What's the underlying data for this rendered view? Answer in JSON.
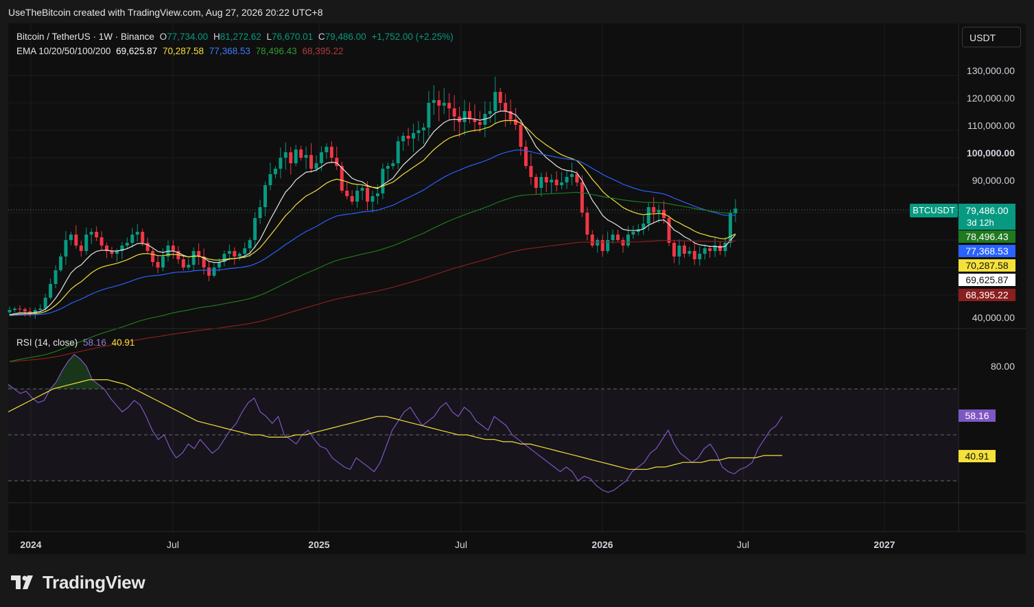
{
  "header": {
    "attribution": "UseTheBitcoin created with TradingView.com, Aug 27, 2026 20:22 UTC+8"
  },
  "legend": {
    "symbol": "Bitcoin / TetherUS · 1W · Binance",
    "open_label": "O",
    "open": "77,734.00",
    "high_label": "H",
    "high": "81,272.62",
    "low_label": "L",
    "low": "76,670.01",
    "close_label": "C",
    "close": "79,486.00",
    "change": "+1,752.00 (+2.25%)",
    "ema_title": "EMA 10/20/50/100/200",
    "ema_values": [
      "69,625.87",
      "70,287.58",
      "77,368.53",
      "78,496.43",
      "68,395.22"
    ],
    "rsi_title": "RSI (14, close)",
    "rsi_value": "58.16",
    "rsi_ma_value": "40.91"
  },
  "toolbar": {
    "currency_button": "USDT"
  },
  "price_axis": [
    "130,000.00",
    "120,000.00",
    "110,000.00",
    "100,000.00",
    "90,000.00",
    "40,000.00"
  ],
  "rsi_axis": [
    "80.00"
  ],
  "time_axis": [
    {
      "label": "2024",
      "year": true
    },
    {
      "label": "Jul",
      "year": false
    },
    {
      "label": "2025",
      "year": true
    },
    {
      "label": "Jul",
      "year": false
    },
    {
      "label": "2026",
      "year": true
    },
    {
      "label": "Jul",
      "year": false
    },
    {
      "label": "2027",
      "year": true
    }
  ],
  "tags": {
    "symbol_tag": "BTCUSDT",
    "last_price": "79,486.00",
    "countdown": "3d 12h",
    "ema100": "78,496.43",
    "ema50": "77,368.53",
    "ema20": "70,287.58",
    "ema10": "69,625.87",
    "ema200": "68,395.22",
    "rsi": "58.16",
    "rsi_ma": "40.91"
  },
  "brand": {
    "name": "TradingView"
  },
  "colors": {
    "up": "#089981",
    "down": "#f23645",
    "ema10": "#e6e6e6",
    "ema20": "#f4e13a",
    "ema50": "#2962ff",
    "ema100": "#1f7a1f",
    "ema200": "#8b1e1e",
    "rsi": "#7e57c2",
    "rsi_ma": "#f4e13a"
  },
  "chart_data": {
    "type": "candlestick",
    "timeframe": "1W",
    "y_range": [
      40000,
      130000
    ],
    "rsi_range": [
      20,
      80
    ],
    "rsi_bands": [
      30,
      50,
      70
    ],
    "series": [
      {
        "name": "BTC/USDT close (approx.)",
        "values": [
          42500,
          43000,
          42800,
          42000,
          41000,
          42500,
          43000,
          47000,
          52000,
          57000,
          62000,
          68000,
          70000,
          66000,
          64000,
          70000,
          71000,
          69000,
          66000,
          64000,
          63000,
          64000,
          66000,
          67000,
          70000,
          71000,
          67000,
          64000,
          60000,
          58000,
          62000,
          66000,
          64000,
          61000,
          58000,
          59000,
          64000,
          62000,
          58000,
          55000,
          58000,
          60000,
          63000,
          64000,
          62000,
          63000,
          65000,
          68000,
          76000,
          80000,
          88000,
          92000,
          94000,
          98000,
          100000,
          96000,
          101000,
          98000,
          99000,
          94000,
          96000,
          100000,
          102000,
          98000,
          95000,
          86000,
          84000,
          82000,
          86000,
          87000,
          82000,
          84000,
          85000,
          94000,
          95000,
          96000,
          104000,
          106000,
          105000,
          107000,
          108000,
          109000,
          118000,
          119000,
          117000,
          118000,
          116000,
          113000,
          111000,
          115000,
          112000,
          111000,
          110000,
          114000,
          115000,
          122000,
          118000,
          115000,
          112000,
          110000,
          102000,
          95000,
          91000,
          87000,
          91000,
          89000,
          90000,
          88000,
          89000,
          91000,
          92000,
          89000,
          78000,
          70000,
          66000,
          68000,
          64000,
          68000,
          70000,
          68000,
          66000,
          70000,
          71000,
          72000,
          74000,
          80000,
          78000,
          79000,
          76000,
          67000,
          62000,
          66000,
          63000,
          64000,
          61000,
          63000,
          65000,
          64000,
          66000,
          64000,
          67000,
          77734,
          79486
        ]
      },
      {
        "name": "RSI (14, close)",
        "values": [
          72,
          70,
          68,
          69,
          66,
          64,
          65,
          70,
          73,
          78,
          82,
          85,
          83,
          80,
          74,
          72,
          70,
          66,
          63,
          60,
          62,
          65,
          63,
          58,
          52,
          48,
          50,
          44,
          40,
          42,
          46,
          44,
          48,
          45,
          42,
          44,
          48,
          52,
          55,
          60,
          64,
          66,
          60,
          58,
          55,
          58,
          50,
          48,
          46,
          50,
          52,
          48,
          45,
          44,
          40,
          38,
          36,
          35,
          40,
          38,
          36,
          34,
          38,
          45,
          52,
          56,
          60,
          62,
          58,
          54,
          56,
          58,
          62,
          64,
          60,
          58,
          62,
          60,
          56,
          54,
          52,
          58,
          56,
          54,
          50,
          48,
          46,
          44,
          42,
          40,
          38,
          36,
          34,
          36,
          34,
          30,
          32,
          31,
          28,
          26,
          25,
          26,
          28,
          30,
          34,
          36,
          38,
          42,
          44,
          48,
          52,
          46,
          42,
          40,
          38,
          40,
          44,
          46,
          42,
          36,
          34,
          33,
          35,
          36,
          38,
          44,
          48,
          52,
          54,
          58
        ]
      },
      {
        "name": "RSI MA",
        "values": [
          60,
          62,
          64,
          66,
          68,
          70,
          71,
          72,
          73,
          74,
          74,
          74,
          73,
          72,
          70,
          68,
          66,
          64,
          62,
          60,
          58,
          56,
          55,
          54,
          53,
          52,
          51,
          50,
          50,
          49,
          49,
          49,
          50,
          50,
          51,
          52,
          53,
          54,
          55,
          56,
          57,
          58,
          58,
          57,
          56,
          55,
          54,
          53,
          52,
          51,
          50,
          50,
          49,
          48,
          48,
          47,
          47,
          46,
          46,
          45,
          44,
          43,
          42,
          41,
          40,
          39,
          38,
          37,
          36,
          35,
          35,
          35,
          36,
          36,
          37,
          38,
          38,
          38,
          39,
          39,
          40,
          40,
          40,
          40,
          41,
          41,
          41
        ]
      }
    ],
    "ema_periods": [
      10,
      20,
      50,
      100,
      200
    ]
  }
}
